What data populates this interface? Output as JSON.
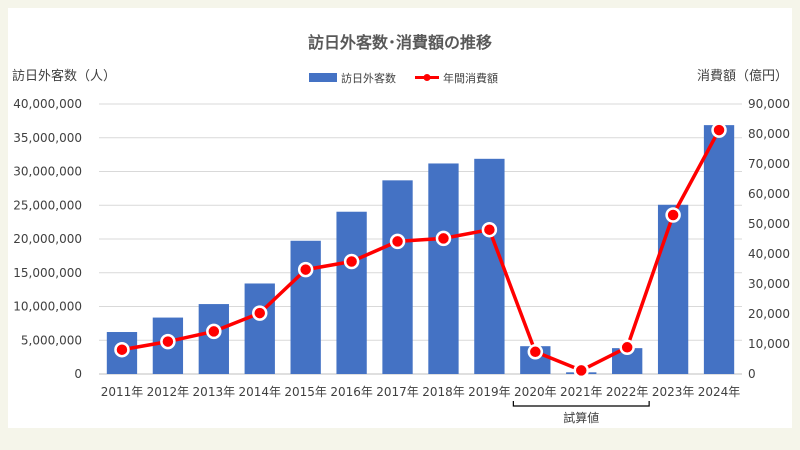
{
  "chart_data": {
    "type": "bar",
    "title": "訪日外客数･消費額の推移",
    "categories": [
      "2011年",
      "2012年",
      "2013年",
      "2014年",
      "2015年",
      "2016年",
      "2017年",
      "2018年",
      "2019年",
      "2020年",
      "2021年",
      "2022年",
      "2023年",
      "2024年"
    ],
    "series": [
      {
        "name": "訪日外客数",
        "type": "bar",
        "axis": "left",
        "color": "#4472c4",
        "values": [
          6220000,
          8360000,
          10360000,
          13410000,
          19740000,
          24040000,
          28690000,
          31190000,
          31880000,
          4120000,
          250000,
          3830000,
          25070000,
          36870000
        ]
      },
      {
        "name": "年間消費額",
        "type": "line",
        "axis": "right",
        "color": "#ff0000",
        "values": [
          8100,
          10800,
          14200,
          20300,
          34800,
          37500,
          44200,
          45200,
          48100,
          7400,
          1200,
          8900,
          53000,
          81300
        ]
      }
    ],
    "y_left": {
      "label": "訪日外客数（人）",
      "min": 0,
      "max": 40000000,
      "step": 5000000,
      "ticks": [
        "0",
        "5,000,000",
        "10,000,000",
        "15,000,000",
        "20,000,000",
        "25,000,000",
        "30,000,000",
        "35,000,000",
        "40,000,000"
      ]
    },
    "y_right": {
      "label": "消費額（億円）",
      "min": 0,
      "max": 90000,
      "step": 10000,
      "ticks": [
        "0",
        "10,000",
        "20,000",
        "30,000",
        "40,000",
        "50,000",
        "60,000",
        "70,000",
        "80,000",
        "90,000"
      ]
    },
    "annotation": {
      "text": "試算値",
      "from_index": 9,
      "to_index": 11
    },
    "grid": true,
    "legend_position": "top-center"
  }
}
